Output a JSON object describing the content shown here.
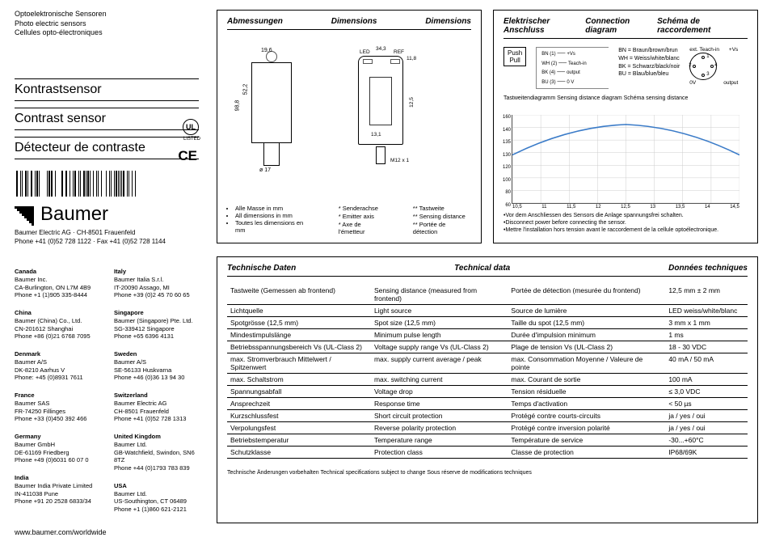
{
  "header": {
    "de": "Optoelektronische Sensoren",
    "en": "Photo electric sensors",
    "fr": "Cellules opto-électroniques"
  },
  "titles": {
    "de": "Kontrastsensor",
    "en": "Contrast sensor",
    "fr": "Détecteur de contraste"
  },
  "company": {
    "logo_text": "Baumer",
    "line": "Baumer Electric AG · CH-8501 Frauenfeld",
    "phone": "Phone +41 (0)52 728 1122 · Fax +41 (0)52 728 1144",
    "website": "www.baumer.com/worldwide"
  },
  "marks": {
    "ul": "UL",
    "ul_sub": "LISTED",
    "ce": "CE"
  },
  "offices": {
    "col1": [
      {
        "country": "Canada",
        "lines": [
          "Baumer Inc.",
          "CA-Burlington, ON L7M 4B9",
          "Phone +1 (1)905 335-8444"
        ]
      },
      {
        "country": "China",
        "lines": [
          "Baumer (China) Co., Ltd.",
          "CN-201612 Shanghai",
          "Phone +86 (0)21 6768 7095"
        ]
      },
      {
        "country": "Denmark",
        "lines": [
          "Baumer A/S",
          "DK-8210 Aarhus V",
          "Phone: +45 (0)8931 7611"
        ]
      },
      {
        "country": "France",
        "lines": [
          "Baumer SAS",
          "FR-74250 Fillinges",
          "Phone +33 (0)450 392 466"
        ]
      },
      {
        "country": "Germany",
        "lines": [
          "Baumer GmbH",
          "DE-61169 Friedberg",
          "Phone +49 (0)6031 60 07 0"
        ]
      },
      {
        "country": "India",
        "lines": [
          "Baumer India Private Limited",
          "IN-411038 Pune",
          "Phone +91 20 2528 6833/34"
        ]
      }
    ],
    "col2": [
      {
        "country": "Italy",
        "lines": [
          "Baumer Italia S.r.l.",
          "IT-20090 Assago, MI",
          "Phone +39 (0)2 45 70 60 65"
        ]
      },
      {
        "country": "Singapore",
        "lines": [
          "Baumer (Singapore) Pte. Ltd.",
          "SG-339412 Singapore",
          "Phone +65 6396 4131"
        ]
      },
      {
        "country": "Sweden",
        "lines": [
          "Baumer A/S",
          "SE-56133 Huskvarna",
          "Phone +46 (0)36 13 94 30"
        ]
      },
      {
        "country": "Switzerland",
        "lines": [
          "Baumer Electric AG",
          "CH-8501 Frauenfeld",
          "Phone +41 (0)52 728 1313"
        ]
      },
      {
        "country": "United Kingdom",
        "lines": [
          "Baumer Ltd.",
          "GB-Watchfield, Swindon, SN6 8TZ",
          "Phone +44 (0)1793 783 839"
        ]
      },
      {
        "country": "USA",
        "lines": [
          "Baumer Ltd.",
          "US-Southington, CT 06489",
          "Phone +1 (1)860 621-2121"
        ]
      }
    ]
  },
  "dimensions": {
    "head_de": "Abmessungen",
    "head_en": "Dimensions",
    "head_fr": "Dimensions",
    "labels": {
      "w_top": "19,6",
      "led": "LED",
      "w_mid": "34,3",
      "ref": "REF",
      "w_r": "11,8",
      "h_main": "98,8",
      "h_upper": "52,2",
      "diam": "ø 17",
      "m12": "M12 x 1",
      "h_inner": "12,5",
      "h_bot": "13,1"
    },
    "notes_bullets": [
      "Alle Masse in mm",
      "All dimensions in mm",
      "Toutes les dimensions en mm"
    ],
    "notes_star1": [
      "* Senderachse",
      "* Emitter axis",
      "* Axe de l'émetteur"
    ],
    "notes_star2": [
      "** Tastweite",
      "** Sensing distance",
      "** Portée de détection"
    ]
  },
  "connection": {
    "head_de": "Elektrischer Anschluss",
    "head_en": "Connection diagram",
    "head_fr": "Schéma de raccordement",
    "pushpull": "Push\nPull",
    "wires": [
      "BN (1)",
      "WH (2)",
      "BK (4)",
      "BU (3)"
    ],
    "wire_labels": [
      "+Vs",
      "Teach-in",
      "output",
      "0 V"
    ],
    "legend": [
      "BN = Braun/brown/brun",
      "WH = Weiss/white/blanc",
      "BK = Schwarz/black/noir",
      "BU = Blau/blue/bleu"
    ],
    "conn_labels": {
      "ext": "ext. Teach-in",
      "vs": "+Vs",
      "ov": "0V",
      "out": "output",
      "p1": "1",
      "p2": "2",
      "p3": "3",
      "p4": "4"
    },
    "chart_title": "Tastweitendiagramm   Sensing distance diagram   Schéma sensing distance",
    "chart": {
      "y_values": [
        160,
        140,
        135,
        130,
        120,
        100,
        80,
        60
      ],
      "x_values": [
        "10,5",
        "11",
        "11,5",
        "12",
        "12,5",
        "13",
        "13,5",
        "14",
        "14,5"
      ],
      "curve_color": "#3a7bc8",
      "grid_color": "#cccccc"
    },
    "warnings": [
      "•Vor dem Anschliessen des Sensors die Anlage spannungsfrei schalten.",
      "•Disconnect power before connecting the sensor.",
      "•Mettre l'installation hors tension avant le raccordement de la cellule optoélectronique."
    ]
  },
  "tech": {
    "head_de": "Technische Daten",
    "head_en": "Technical data",
    "head_fr": "Données techniques",
    "rows": [
      {
        "de": "Tastweite (Gemessen ab frontend)",
        "en": "Sensing distance (measured from frontend)",
        "fr": "Portée de détection (mesurée du frontend)",
        "val": "12,5 mm ± 2 mm"
      },
      {
        "de": "Lichtquelle",
        "en": "Light source",
        "fr": "Source de lumière",
        "val": "LED weiss/white/blanc"
      },
      {
        "de": "Spotgrösse (12,5 mm)",
        "en": "Spot size (12,5 mm)",
        "fr": "Taille du spot (12,5 mm)",
        "val": "3 mm x 1 mm"
      },
      {
        "de": "Mindestimpulslänge",
        "en": "Minimum pulse length",
        "fr": "Durée d'impulsion minimum",
        "val": "1 ms"
      },
      {
        "de": "Betriebsspannungsbereich Vs (UL-Class 2)",
        "en": "Voltage supply range Vs (UL-Class 2)",
        "fr": "Plage de tension Vs (UL-Class 2)",
        "val": "18 - 30 VDC"
      },
      {
        "de": "max. Stromverbrauch Mittelwert / Spitzenwert",
        "en": "max. supply current average / peak",
        "fr": "max. Consommation Moyenne / Valeure de pointe",
        "val": "40 mA / 50 mA"
      },
      {
        "de": "max. Schaltstrom",
        "en": "max. switching current",
        "fr": "max. Courant de sortie",
        "val": "100 mA"
      },
      {
        "de": "Spannungsabfall",
        "en": "Voltage drop",
        "fr": "Tension résiduelle",
        "val": "≤ 3,0 VDC"
      },
      {
        "de": "Ansprechzeit",
        "en": "Response time",
        "fr": "Temps d'activation",
        "val": "< 50 µs"
      },
      {
        "de": "Kurzschlussfest",
        "en": "Short circuit protection",
        "fr": "Protégé contre courts-circuits",
        "val": "ja / yes / oui"
      },
      {
        "de": "Verpolungsfest",
        "en": "Reverse polarity protection",
        "fr": "Protégé contre inversion polarité",
        "val": "ja / yes / oui"
      },
      {
        "de": "Betriebstemperatur",
        "en": "Temperature range",
        "fr": "Température de service",
        "val": "-30...+60°C"
      },
      {
        "de": "Schutzklasse",
        "en": "Protection class",
        "fr": "Classe de protection",
        "val": "IP68/69K"
      }
    ],
    "footer": "Technische Änderungen vorbehalten  Technical specifications subject to change  Sous réserve de modifications techniques"
  }
}
